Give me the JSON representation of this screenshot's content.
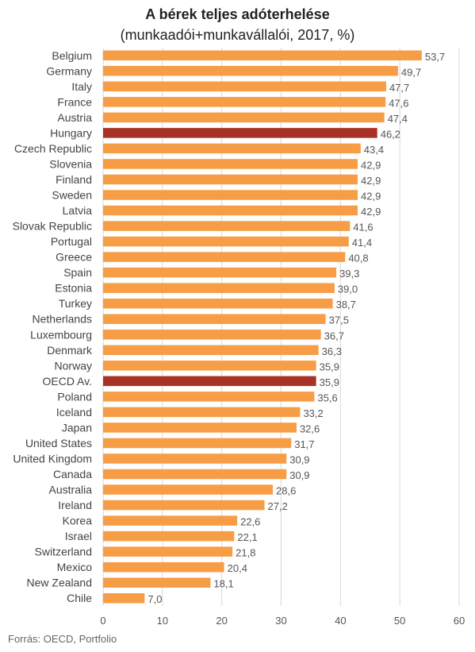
{
  "chart_data": {
    "type": "bar",
    "orientation": "horizontal",
    "title": "A bérek teljes adóterhelése",
    "subtitle": "(munkaadói+munkavállalói, 2017, %)",
    "categories": [
      "Belgium",
      "Germany",
      "Italy",
      "France",
      "Austria",
      "Hungary",
      "Czech Republic",
      "Slovenia",
      "Finland",
      "Sweden",
      "Latvia",
      "Slovak Republic",
      "Portugal",
      "Greece",
      "Spain",
      "Estonia",
      "Turkey",
      "Netherlands",
      "Luxembourg",
      "Denmark",
      "Norway",
      "OECD Av.",
      "Poland",
      "Iceland",
      "Japan",
      "United States",
      "United Kingdom",
      "Canada",
      "Australia",
      "Ireland",
      "Korea",
      "Israel",
      "Switzerland",
      "Mexico",
      "New Zealand",
      "Chile"
    ],
    "values": [
      53.7,
      49.7,
      47.7,
      47.6,
      47.4,
      46.2,
      43.4,
      42.9,
      42.9,
      42.9,
      42.9,
      41.6,
      41.4,
      40.8,
      39.3,
      39.0,
      38.7,
      37.5,
      36.7,
      36.3,
      35.9,
      35.9,
      35.6,
      33.2,
      32.6,
      31.7,
      30.9,
      30.9,
      28.6,
      27.2,
      22.6,
      22.1,
      21.8,
      20.4,
      18.1,
      7.0
    ],
    "value_labels": [
      "53,7",
      "49,7",
      "47,7",
      "47,6",
      "47,4",
      "46,2",
      "43,4",
      "42,9",
      "42,9",
      "42,9",
      "42,9",
      "41,6",
      "41,4",
      "40,8",
      "39,3",
      "39,0",
      "38,7",
      "37,5",
      "36,7",
      "36,3",
      "35,9",
      "35,9",
      "35,6",
      "33,2",
      "32,6",
      "31,7",
      "30,9",
      "30,9",
      "28,6",
      "27,2",
      "22,6",
      "22,1",
      "21,8",
      "20,4",
      "18,1",
      "7,0"
    ],
    "highlighted": [
      "Hungary",
      "OECD Av."
    ],
    "xlim": [
      0,
      60
    ],
    "xticks": [
      "0",
      "10",
      "20",
      "30",
      "40",
      "50",
      "60"
    ],
    "grid": true,
    "colors": {
      "bar": "#F79D46",
      "highlight": "#A93226",
      "grid": "#d9d9d9"
    }
  },
  "footer": {
    "source": "Forrás: OECD, Portfolio"
  }
}
